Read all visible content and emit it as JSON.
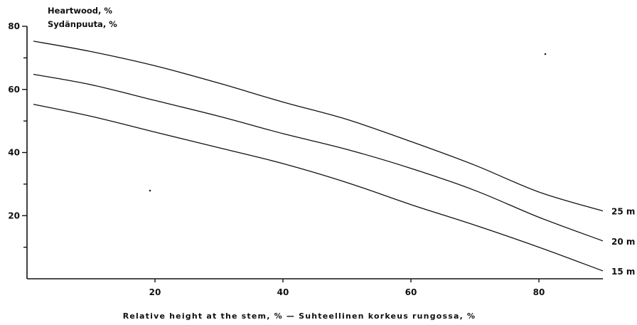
{
  "chart_data": {
    "type": "line",
    "ylabel_lines": [
      "Heartwood, %",
      "Sydänpuuta, %"
    ],
    "xlabel": "Relative height at the stem, %   —   Suhteellinen korkeus rungossa, %",
    "xlim": [
      0,
      90
    ],
    "ylim": [
      0,
      80
    ],
    "xticks": [
      20,
      40,
      60,
      80
    ],
    "yticks": [
      20,
      40,
      60,
      80
    ],
    "ytick_labels": [
      "20",
      "40",
      "60",
      "80"
    ],
    "minor_yticks": [
      10,
      30,
      50,
      70
    ],
    "grid": false,
    "series": [
      {
        "name": "25 m",
        "x": [
          1,
          10,
          20,
          30,
          40,
          50,
          60,
          70,
          80,
          90
        ],
        "y": [
          75.3,
          72,
          67.5,
          62,
          56,
          50.5,
          43.5,
          36,
          27.5,
          21.5
        ]
      },
      {
        "name": "20 m",
        "x": [
          1,
          10,
          20,
          30,
          40,
          50,
          60,
          70,
          80,
          90
        ],
        "y": [
          64.8,
          61.5,
          56.5,
          51.5,
          46,
          41,
          35,
          28,
          19.5,
          12
        ]
      },
      {
        "name": "15 m",
        "x": [
          1,
          10,
          20,
          30,
          40,
          50,
          60,
          70,
          80,
          90
        ],
        "y": [
          55.3,
          51.5,
          46.5,
          41.5,
          36.5,
          30.5,
          23.5,
          17,
          10,
          2.5
        ]
      }
    ]
  }
}
